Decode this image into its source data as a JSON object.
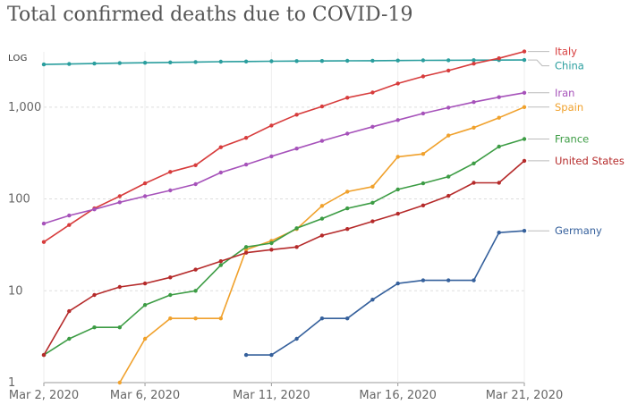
{
  "chart_data": {
    "type": "line",
    "title": "Total confirmed deaths due to COVID-19",
    "scale_label": "LOG",
    "y_scale": "log",
    "ylim": [
      1,
      4000
    ],
    "xlim": [
      "2020-03-02",
      "2020-03-21"
    ],
    "y_ticks": [
      1,
      10,
      100,
      1000
    ],
    "y_tick_labels": [
      "1",
      "10",
      "100",
      "1,000"
    ],
    "x_ticks": [
      "2020-03-02",
      "2020-03-06",
      "2020-03-11",
      "2020-03-16",
      "2020-03-21"
    ],
    "x_tick_labels": [
      "Mar 2, 2020",
      "Mar 6, 2020",
      "Mar 11, 2020",
      "Mar 16, 2020",
      "Mar 21, 2020"
    ],
    "grid": "horizontal dashed",
    "legend": "right (line-end labels)",
    "series": [
      {
        "name": "China",
        "color": "#2a9e9e",
        "x": [
          "2020-03-02",
          "2020-03-03",
          "2020-03-04",
          "2020-03-05",
          "2020-03-06",
          "2020-03-07",
          "2020-03-08",
          "2020-03-09",
          "2020-03-10",
          "2020-03-11",
          "2020-03-12",
          "2020-03-13",
          "2020-03-14",
          "2020-03-15",
          "2020-03-16",
          "2020-03-17",
          "2020-03-18",
          "2020-03-19",
          "2020-03-20",
          "2020-03-21"
        ],
        "values": [
          2915,
          2946,
          2984,
          3015,
          3045,
          3073,
          3100,
          3123,
          3140,
          3162,
          3173,
          3180,
          3194,
          3203,
          3217,
          3230,
          3242,
          3249,
          3253,
          3259
        ]
      },
      {
        "name": "Italy",
        "color": "#d73c3c",
        "x": [
          "2020-03-02",
          "2020-03-03",
          "2020-03-04",
          "2020-03-05",
          "2020-03-06",
          "2020-03-07",
          "2020-03-08",
          "2020-03-09",
          "2020-03-10",
          "2020-03-11",
          "2020-03-12",
          "2020-03-13",
          "2020-03-14",
          "2020-03-15",
          "2020-03-16",
          "2020-03-17",
          "2020-03-18",
          "2020-03-19",
          "2020-03-20",
          "2020-03-21"
        ],
        "values": [
          34,
          52,
          79,
          107,
          148,
          197,
          233,
          366,
          463,
          631,
          827,
          1016,
          1266,
          1441,
          1809,
          2158,
          2503,
          2978,
          3405,
          4032
        ]
      },
      {
        "name": "Iran",
        "color": "#a652ba",
        "x": [
          "2020-03-02",
          "2020-03-03",
          "2020-03-04",
          "2020-03-05",
          "2020-03-06",
          "2020-03-07",
          "2020-03-08",
          "2020-03-09",
          "2020-03-10",
          "2020-03-11",
          "2020-03-12",
          "2020-03-13",
          "2020-03-14",
          "2020-03-15",
          "2020-03-16",
          "2020-03-17",
          "2020-03-18",
          "2020-03-19",
          "2020-03-20",
          "2020-03-21"
        ],
        "values": [
          54,
          66,
          77,
          92,
          107,
          124,
          145,
          194,
          237,
          291,
          354,
          429,
          514,
          611,
          724,
          853,
          988,
          1135,
          1284,
          1433
        ]
      },
      {
        "name": "Spain",
        "color": "#f0a12c",
        "x": [
          "2020-03-05",
          "2020-03-06",
          "2020-03-07",
          "2020-03-08",
          "2020-03-09",
          "2020-03-10",
          "2020-03-11",
          "2020-03-12",
          "2020-03-13",
          "2020-03-14",
          "2020-03-15",
          "2020-03-16",
          "2020-03-17",
          "2020-03-18",
          "2020-03-19",
          "2020-03-20",
          "2020-03-21"
        ],
        "values": [
          1,
          3,
          5,
          5,
          5,
          28,
          35,
          47,
          84,
          120,
          136,
          288,
          309,
          491,
          598,
          767,
          1002
        ]
      },
      {
        "name": "France",
        "color": "#3c9c44",
        "x": [
          "2020-03-02",
          "2020-03-03",
          "2020-03-04",
          "2020-03-05",
          "2020-03-06",
          "2020-03-07",
          "2020-03-08",
          "2020-03-09",
          "2020-03-10",
          "2020-03-11",
          "2020-03-12",
          "2020-03-13",
          "2020-03-14",
          "2020-03-15",
          "2020-03-16",
          "2020-03-17",
          "2020-03-18",
          "2020-03-19",
          "2020-03-20",
          "2020-03-21"
        ],
        "values": [
          2,
          3,
          4,
          4,
          7,
          9,
          10,
          19,
          30,
          33,
          48,
          61,
          79,
          91,
          127,
          148,
          175,
          244,
          372,
          450
        ]
      },
      {
        "name": "United States",
        "color": "#b52a2a",
        "x": [
          "2020-03-02",
          "2020-03-03",
          "2020-03-04",
          "2020-03-05",
          "2020-03-06",
          "2020-03-07",
          "2020-03-08",
          "2020-03-09",
          "2020-03-10",
          "2020-03-11",
          "2020-03-12",
          "2020-03-13",
          "2020-03-14",
          "2020-03-15",
          "2020-03-16",
          "2020-03-17",
          "2020-03-18",
          "2020-03-19",
          "2020-03-20",
          "2020-03-21"
        ],
        "values": [
          2,
          6,
          9,
          11,
          12,
          14,
          17,
          21,
          26,
          28,
          30,
          40,
          47,
          57,
          69,
          85,
          108,
          150,
          150,
          260
        ]
      },
      {
        "name": "Germany",
        "color": "#35609c",
        "x": [
          "2020-03-10",
          "2020-03-11",
          "2020-03-12",
          "2020-03-13",
          "2020-03-14",
          "2020-03-15",
          "2020-03-16",
          "2020-03-17",
          "2020-03-18",
          "2020-03-19",
          "2020-03-20",
          "2020-03-21"
        ],
        "values": [
          2,
          2,
          3,
          5,
          5,
          8,
          12,
          13,
          13,
          13,
          43,
          45
        ]
      }
    ]
  }
}
